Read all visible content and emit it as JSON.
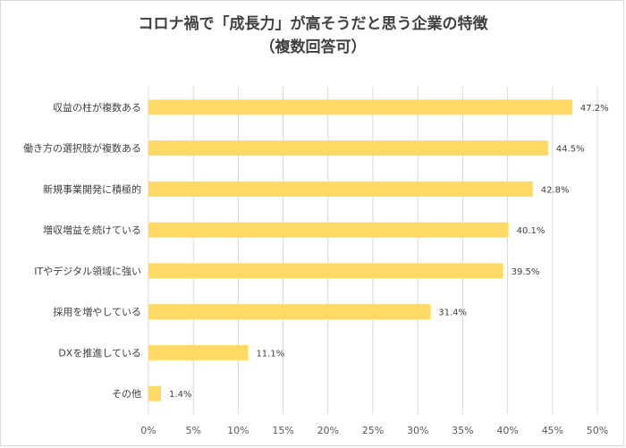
{
  "chart_data": {
    "type": "bar",
    "orientation": "horizontal",
    "title": "コロナ禍で「成長力」が高そうだと思う企業の特徴",
    "subtitle": "（複数回答可）",
    "categories": [
      "収益の柱が複数ある",
      "働き方の選択肢が複数ある",
      "新規事業開発に積極的",
      "増収増益を続けている",
      "ITやデジタル領域に強い",
      "採用を増やしている",
      "DXを推進している",
      "その他"
    ],
    "values": [
      47.2,
      44.5,
      42.8,
      40.1,
      39.5,
      31.4,
      11.1,
      1.4
    ],
    "value_labels": [
      "47.2%",
      "44.5%",
      "42.8%",
      "40.1%",
      "39.5%",
      "31.4%",
      "11.1%",
      "1.4%"
    ],
    "x_ticks": [
      "0%",
      "5%",
      "10%",
      "15%",
      "20%",
      "25%",
      "30%",
      "35%",
      "40%",
      "45%",
      "50%"
    ],
    "xlim": [
      0,
      50
    ],
    "grid": true,
    "bar_color": "#ffd966",
    "grid_color": "#d9d9d9"
  }
}
